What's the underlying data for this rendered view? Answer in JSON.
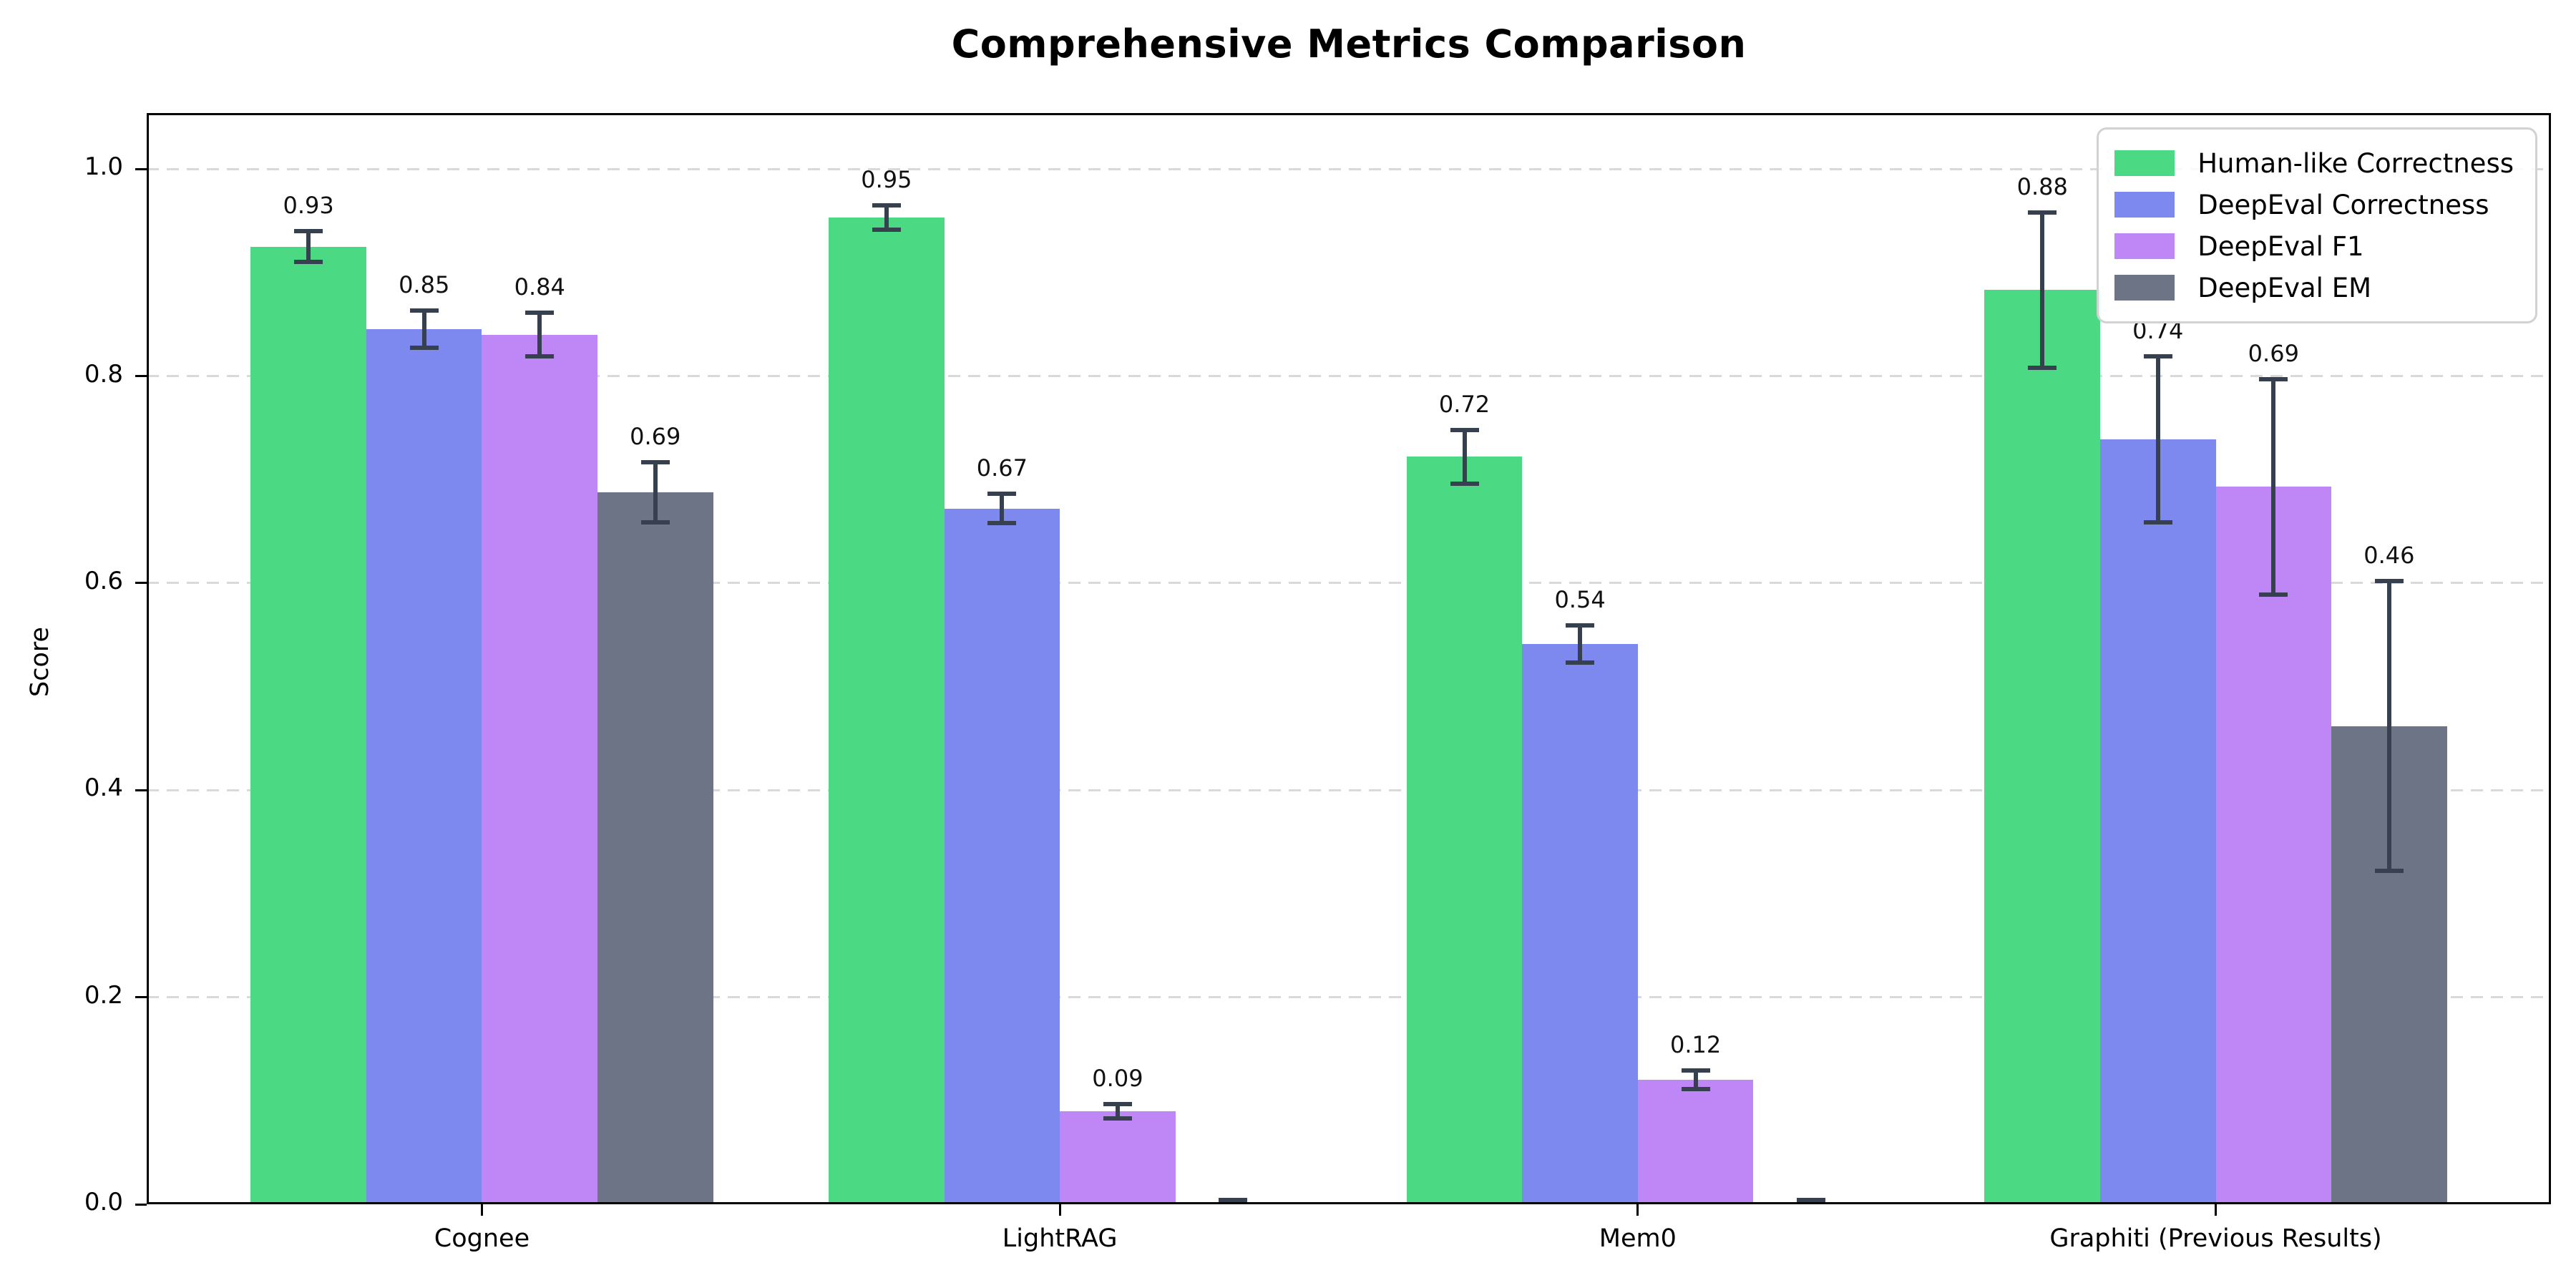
{
  "figure": {
    "title": "Comprehensive Metrics Comparison",
    "background_color": "#ffffff"
  },
  "chart_data": {
    "type": "bar",
    "title": "Comprehensive Metrics Comparison",
    "xlabel": "",
    "ylabel": "Score",
    "categories": [
      "Cognee",
      "LightRAG",
      "Mem0",
      "Graphiti (Previous Results)"
    ],
    "series": [
      {
        "name": "Human-like Correctness",
        "color": "#4bd983",
        "values": [
          0.925,
          0.953,
          0.722,
          0.883
        ],
        "errors": [
          0.015,
          0.012,
          0.026,
          0.075
        ],
        "labels": [
          "0.93",
          "0.95",
          "0.72",
          "0.88"
        ]
      },
      {
        "name": "DeepEval Correctness",
        "color": "#7e89f0",
        "values": [
          0.845,
          0.672,
          0.541,
          0.739
        ],
        "errors": [
          0.018,
          0.014,
          0.018,
          0.08
        ],
        "labels": [
          "0.85",
          "0.67",
          "0.54",
          "0.74"
        ]
      },
      {
        "name": "DeepEval F1",
        "color": "#bf86f6",
        "values": [
          0.84,
          0.09,
          0.12,
          0.693
        ],
        "errors": [
          0.021,
          0.007,
          0.009,
          0.104
        ],
        "labels": [
          "0.84",
          "0.09",
          "0.12",
          "0.69"
        ]
      },
      {
        "name": "DeepEval EM",
        "color": "#6c7485",
        "values": [
          0.688,
          0.0,
          0.0,
          0.462
        ],
        "errors": [
          0.029,
          0.004,
          0.004,
          0.14
        ],
        "labels": [
          "0.69",
          "",
          "",
          "0.46"
        ]
      }
    ],
    "y_ticks": [
      {
        "value": 0.0,
        "label": "0.0"
      },
      {
        "value": 0.2,
        "label": "0.2"
      },
      {
        "value": 0.4,
        "label": "0.4"
      },
      {
        "value": 0.6,
        "label": "0.6"
      },
      {
        "value": 0.8,
        "label": "0.8"
      },
      {
        "value": 1.0,
        "label": "1.0"
      }
    ],
    "ylim": [
      0,
      1.054
    ],
    "grid": "horizontal-dashed",
    "grid_color": "#d9d9d9",
    "legend_position": "upper-right",
    "error_bar_color": "#37404e",
    "bar_group_width": 0.8
  }
}
